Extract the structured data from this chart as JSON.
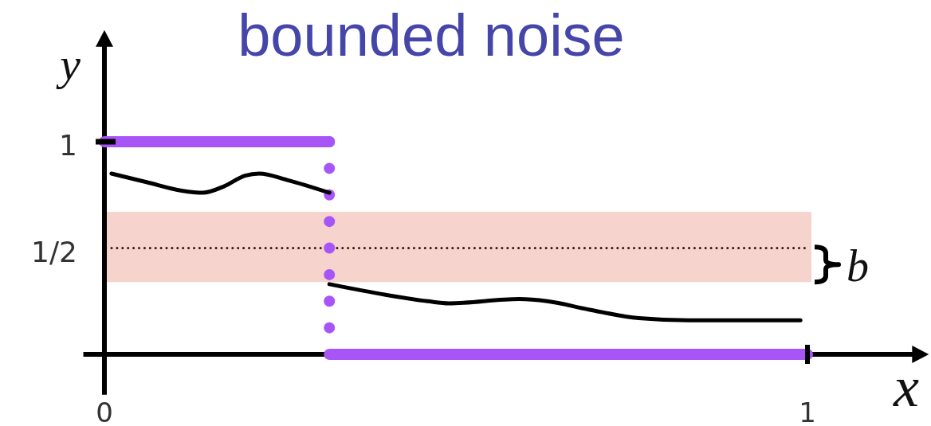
{
  "chart_data": {
    "type": "line",
    "title": "bounded noise",
    "xlabel": "x",
    "ylabel": "y",
    "xlim": [
      -0.03,
      1.15
    ],
    "ylim": [
      -0.19,
      1.45
    ],
    "xticks": [
      0,
      1
    ],
    "yticks": [
      {
        "value": 0.5,
        "label": "1/2"
      },
      1
    ],
    "line_style": "solid",
    "series": [
      {
        "color": "#a855f7",
        "x": [
          0,
          0.32
        ],
        "values": [
          1,
          1
        ]
      },
      {
        "color": "#a855f7",
        "line_style": "dotted",
        "x": [
          0.32,
          0.32
        ],
        "values": [
          1,
          0
        ]
      },
      {
        "color": "#a855f7",
        "x": [
          0.32,
          1
        ],
        "values": [
          0,
          0
        ]
      },
      {
        "color": "#000000",
        "x": [
          0.01,
          0.06,
          0.11,
          0.14,
          0.17,
          0.2,
          0.22,
          0.26,
          0.32
        ],
        "values": [
          0.85,
          0.81,
          0.77,
          0.76,
          0.79,
          0.84,
          0.85,
          0.82,
          0.76
        ]
      },
      {
        "color": "#000000",
        "x": [
          0.32,
          0.4,
          0.46,
          0.49,
          0.59,
          0.63,
          0.69,
          0.76,
          0.83,
          0.99
        ],
        "values": [
          0.33,
          0.28,
          0.25,
          0.24,
          0.26,
          0.25,
          0.21,
          0.17,
          0.16,
          0.16
        ]
      }
    ],
    "ref_lines": [
      {
        "axis": "y",
        "value": 0.5,
        "color": "#3c0d0d",
        "line_style": "dotted"
      }
    ],
    "bands": [
      {
        "axis": "y",
        "from": 0.34,
        "to": 0.67,
        "label": "b",
        "color": "#f6d3cd"
      }
    ]
  }
}
